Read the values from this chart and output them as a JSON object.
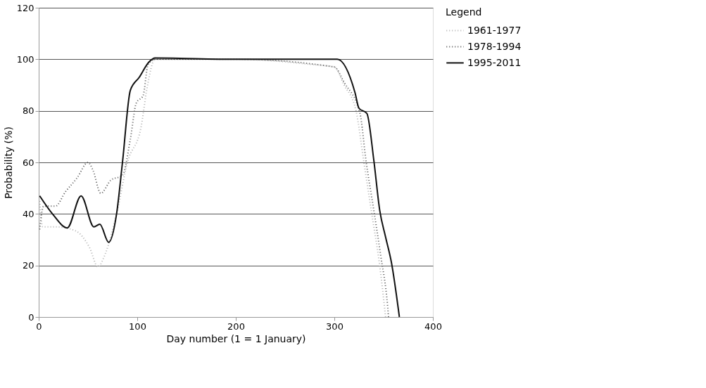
{
  "chart_data": {
    "type": "line",
    "xlabel": "Day number (1 = 1 January)",
    "ylabel": "Probability (%)",
    "legend_title": "Legend",
    "xlim": [
      0,
      400
    ],
    "ylim": [
      0,
      120
    ],
    "xticks": [
      0,
      100,
      200,
      300,
      400
    ],
    "yticks": [
      0,
      20,
      40,
      60,
      80,
      100,
      120
    ],
    "grid": "y",
    "legend": "right",
    "marker": "none",
    "series": [
      {
        "name": "1961-1977",
        "color": "#b0b0b0",
        "line_style": "dotted",
        "x": [
          1,
          4,
          17,
          37,
          52,
          60,
          68,
          79,
          90,
          104,
          110,
          118,
          200,
          277,
          300,
          310,
          322,
          330,
          338,
          346,
          352
        ],
        "values": [
          45,
          35,
          35,
          33.5,
          26.6,
          19.5,
          25,
          40,
          60,
          74,
          89,
          100,
          100,
          98,
          97,
          90,
          80,
          60,
          40,
          20,
          0
        ]
      },
      {
        "name": "1978-1994",
        "color": "#555555",
        "line_style": "dotted",
        "x": [
          1,
          5,
          17,
          27,
          39,
          50,
          55,
          63,
          73,
          85,
          93,
          99,
          106,
          111,
          118,
          200,
          300,
          310,
          326,
          332,
          340,
          347,
          354,
          355
        ],
        "values": [
          34,
          43,
          43,
          48.5,
          54,
          60,
          57,
          48,
          53,
          55,
          69,
          83,
          86,
          98,
          100,
          100,
          97,
          91,
          79,
          61,
          41.5,
          24,
          4.5,
          0
        ]
      },
      {
        "name": "1995-2011",
        "color": "#111111",
        "line_style": "solid",
        "x": [
          1,
          14,
          29,
          43,
          56,
          62,
          71,
          79,
          85,
          93,
          102,
          112,
          118,
          200,
          303,
          321,
          325,
          333,
          340,
          346,
          352,
          358,
          366
        ],
        "values": [
          47,
          40,
          34.6,
          47,
          35,
          36,
          29,
          40,
          60,
          88,
          93,
          99,
          100.5,
          100,
          100,
          87,
          81,
          79,
          61,
          41.5,
          31,
          21,
          0
        ]
      }
    ]
  }
}
